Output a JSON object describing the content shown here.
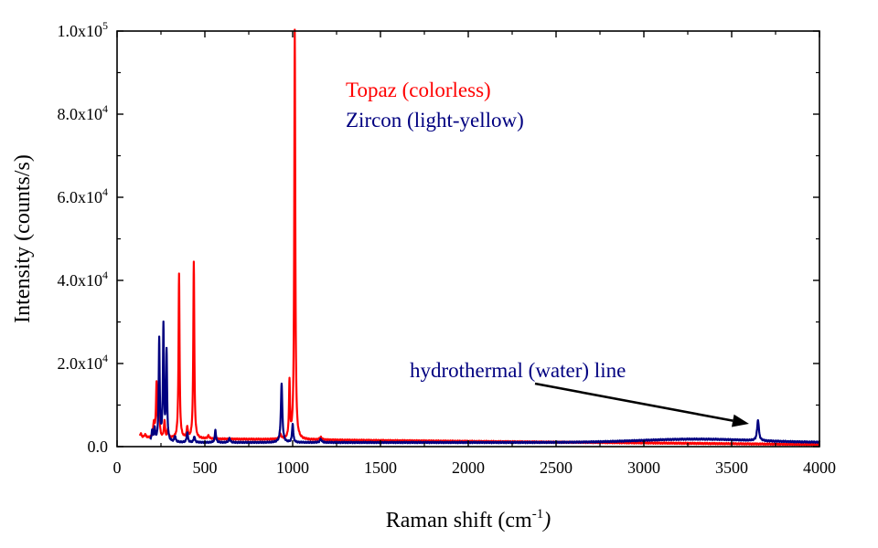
{
  "chart_data": {
    "type": "line",
    "xlabel": {
      "base": "Raman shift (cm",
      "sup": "-1",
      "tail": ")"
    },
    "ylabel": "Intensity (counts/s)",
    "xlim": [
      0,
      4000
    ],
    "ylim": [
      0,
      100000
    ],
    "xticks": [
      {
        "value": 0,
        "label": "0"
      },
      {
        "value": 500,
        "label": "500"
      },
      {
        "value": 1000,
        "label": "1000"
      },
      {
        "value": 1500,
        "label": "1500"
      },
      {
        "value": 2000,
        "label": "2000"
      },
      {
        "value": 2500,
        "label": "2500"
      },
      {
        "value": 3000,
        "label": "3000"
      },
      {
        "value": 3500,
        "label": "3500"
      },
      {
        "value": 4000,
        "label": "4000"
      }
    ],
    "yticks": [
      {
        "value": 0,
        "mantissa": "0.0",
        "exp": ""
      },
      {
        "value": 20000,
        "mantissa": "2.0x10",
        "exp": "4"
      },
      {
        "value": 40000,
        "mantissa": "4.0x10",
        "exp": "4"
      },
      {
        "value": 60000,
        "mantissa": "6.0x10",
        "exp": "4"
      },
      {
        "value": 80000,
        "mantissa": "8.0x10",
        "exp": "4"
      },
      {
        "value": 100000,
        "mantissa": "1.0x10",
        "exp": "5"
      }
    ],
    "grid": false,
    "legend": {
      "placement": "top-center"
    },
    "series": [
      {
        "name": "Topaz (colorless)",
        "color": "#ff0000",
        "baseline": {
          "x_start": 130,
          "x_end": 4000,
          "start": 2000,
          "end": 500
        },
        "peaks": [
          {
            "x": 135,
            "height": 1000,
            "width": 6
          },
          {
            "x": 160,
            "height": 800,
            "width": 6
          },
          {
            "x": 210,
            "height": 3500,
            "width": 5
          },
          {
            "x": 225,
            "height": 13000,
            "width": 4
          },
          {
            "x": 240,
            "height": 6000,
            "width": 4
          },
          {
            "x": 270,
            "height": 4000,
            "width": 4
          },
          {
            "x": 290,
            "height": 2000,
            "width": 4
          },
          {
            "x": 353,
            "height": 39500,
            "width": 3.5
          },
          {
            "x": 400,
            "height": 2500,
            "width": 4
          },
          {
            "x": 437,
            "height": 42500,
            "width": 3.5
          },
          {
            "x": 520,
            "height": 700,
            "width": 6
          },
          {
            "x": 930,
            "height": 1200,
            "width": 6
          },
          {
            "x": 982,
            "height": 13500,
            "width": 3.5
          },
          {
            "x": 1012,
            "height": 98500,
            "width": 3.5
          },
          {
            "x": 1160,
            "height": 600,
            "width": 8
          }
        ]
      },
      {
        "name": "Zircon (light-yellow)",
        "color": "#000080",
        "baseline": {
          "x_start": 190,
          "x_end": 4000,
          "start": 1000,
          "end": 1000
        },
        "hump": {
          "x": 3300,
          "height": 800,
          "width": 450
        },
        "peaks": [
          {
            "x": 200,
            "height": 2500,
            "width": 5
          },
          {
            "x": 214,
            "height": 3000,
            "width": 4
          },
          {
            "x": 240,
            "height": 24500,
            "width": 3.5
          },
          {
            "x": 264,
            "height": 27800,
            "width": 3.5
          },
          {
            "x": 282,
            "height": 21500,
            "width": 3.5
          },
          {
            "x": 330,
            "height": 1500,
            "width": 4
          },
          {
            "x": 400,
            "height": 2500,
            "width": 4
          },
          {
            "x": 440,
            "height": 1500,
            "width": 4
          },
          {
            "x": 560,
            "height": 3000,
            "width": 4
          },
          {
            "x": 640,
            "height": 1000,
            "width": 5
          },
          {
            "x": 937,
            "height": 14000,
            "width": 5
          },
          {
            "x": 1000,
            "height": 4500,
            "width": 4
          },
          {
            "x": 1160,
            "height": 800,
            "width": 6
          },
          {
            "x": 3650,
            "height": 5000,
            "width": 6
          }
        ]
      }
    ],
    "annotations": [
      {
        "text": "hydrothermal (water) line",
        "arrow_to": {
          "x": 3630,
          "y": 5500
        }
      }
    ]
  }
}
